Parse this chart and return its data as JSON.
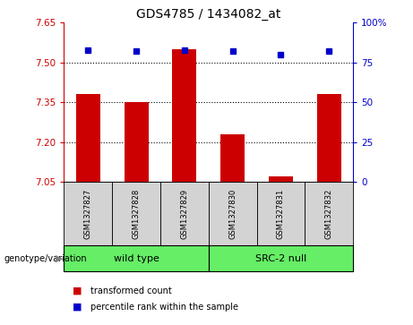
{
  "title": "GDS4785 / 1434082_at",
  "samples": [
    "GSM1327827",
    "GSM1327828",
    "GSM1327829",
    "GSM1327830",
    "GSM1327831",
    "GSM1327832"
  ],
  "bar_values": [
    7.38,
    7.35,
    7.55,
    7.23,
    7.07,
    7.38
  ],
  "dot_values": [
    83,
    82,
    83,
    82,
    80,
    82
  ],
  "ylim_left": [
    7.05,
    7.65
  ],
  "ylim_right": [
    0,
    100
  ],
  "yticks_left": [
    7.05,
    7.2,
    7.35,
    7.5,
    7.65
  ],
  "yticks_right": [
    0,
    25,
    50,
    75,
    100
  ],
  "hlines": [
    7.2,
    7.35,
    7.5
  ],
  "bar_color": "#cc0000",
  "dot_color": "#0000cc",
  "genotype_label": "genotype/variation",
  "legend_red": "transformed count",
  "legend_blue": "percentile rank within the sample",
  "bar_base": 7.05,
  "bar_width": 0.5,
  "group1_label": "wild type",
  "group2_label": "SRC-2 null",
  "group_color": "#66ee66",
  "xlabel_color": "#cc0000",
  "ylabel_right_color": "#0000cc",
  "sample_box_color": "#d3d3d3"
}
